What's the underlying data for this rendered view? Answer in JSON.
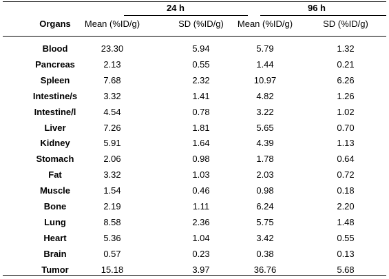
{
  "table": {
    "group_headers": [
      "24 h",
      "96 h"
    ],
    "column_headers": [
      "Organs",
      "Mean (%ID/g)",
      "SD (%ID/g)",
      "Mean (%ID/g)",
      "SD (%ID/g)"
    ],
    "rows": [
      [
        "Blood",
        "23.30",
        "5.94",
        "5.79",
        "1.32"
      ],
      [
        "Pancreas",
        "2.13",
        "0.55",
        "1.44",
        "0.21"
      ],
      [
        "Spleen",
        "7.68",
        "2.32",
        "10.97",
        "6.26"
      ],
      [
        "Intestine/s",
        "3.32",
        "1.41",
        "4.82",
        "1.26"
      ],
      [
        "Intestine/l",
        "4.54",
        "0.78",
        "3.22",
        "1.02"
      ],
      [
        "Liver",
        "7.26",
        "1.81",
        "5.65",
        "0.70"
      ],
      [
        "Kidney",
        "5.91",
        "1.64",
        "4.39",
        "1.13"
      ],
      [
        "Stomach",
        "2.06",
        "0.98",
        "1.78",
        "0.64"
      ],
      [
        "Fat",
        "3.32",
        "1.03",
        "2.03",
        "0.72"
      ],
      [
        "Muscle",
        "1.54",
        "0.46",
        "0.98",
        "0.18"
      ],
      [
        "Bone",
        "2.19",
        "1.11",
        "6.24",
        "2.20"
      ],
      [
        "Lung",
        "8.58",
        "2.36",
        "5.75",
        "1.48"
      ],
      [
        "Heart",
        "5.36",
        "1.04",
        "3.42",
        "0.55"
      ],
      [
        "Brain",
        "0.57",
        "0.23",
        "0.38",
        "0.13"
      ],
      [
        "Tumor",
        "15.18",
        "3.97",
        "36.76",
        "5.68"
      ]
    ]
  }
}
